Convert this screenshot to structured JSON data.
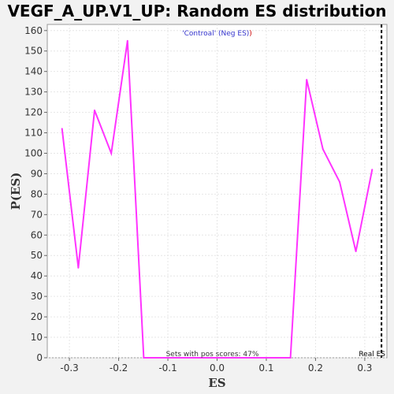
{
  "chart_data": {
    "type": "line",
    "title": "VEGF_A_UP.V1_UP: Random ES distribution",
    "xlabel": "ES",
    "ylabel": "P(ES)",
    "xlim": [
      -0.345,
      0.345
    ],
    "ylim": [
      0,
      163
    ],
    "x_ticks": [
      -0.3,
      -0.2,
      -0.1,
      0.0,
      0.1,
      0.2,
      0.3
    ],
    "x_tick_labels": [
      "-0.3",
      "-0.2",
      "-0.1",
      "0.0",
      "0.1",
      "0.2",
      "0.3"
    ],
    "y_ticks": [
      0,
      10,
      20,
      30,
      40,
      50,
      60,
      70,
      80,
      90,
      100,
      110,
      120,
      130,
      140,
      150,
      160
    ],
    "y_tick_labels": [
      "0",
      "10",
      "20",
      "30",
      "40",
      "50",
      "60",
      "70",
      "80",
      "90",
      "100",
      "110",
      "120",
      "130",
      "140",
      "150",
      "160"
    ],
    "grid": true,
    "series": [
      {
        "color": "#ff33ff",
        "x": [
          -0.315,
          -0.282,
          -0.249,
          -0.215,
          -0.182,
          -0.149,
          0.149,
          0.182,
          0.215,
          0.249,
          0.282,
          0.315
        ],
        "y": [
          112,
          44,
          121,
          100,
          155,
          0,
          0,
          136,
          102,
          86,
          52,
          92
        ]
      }
    ],
    "real_es": {
      "x": 0.334,
      "label": "Real ES",
      "color": "#000000",
      "style": "dashed"
    },
    "legend": {
      "prefix": "'Controal' (Neg ES)",
      "suffix": ")",
      "placement": "top-center",
      "color": "#3333cc",
      "suffix_color": "#cc0000"
    },
    "annotation": "Sets with pos scores: 47%"
  }
}
